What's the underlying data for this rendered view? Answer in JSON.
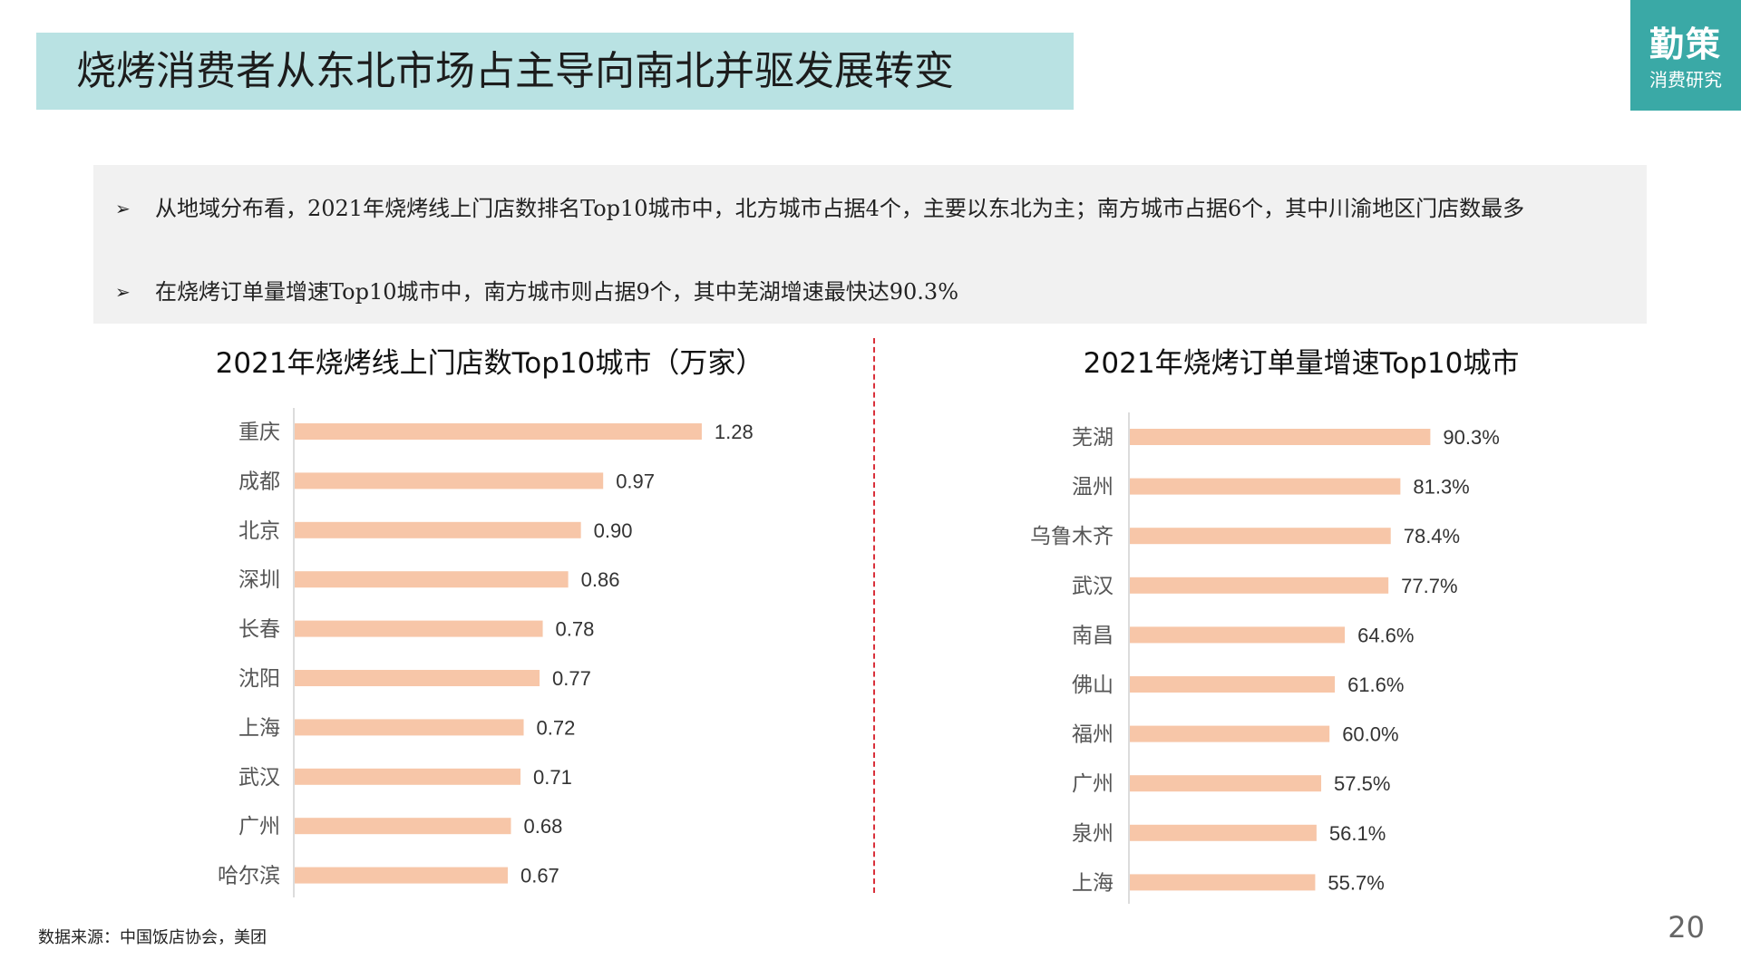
{
  "header": {
    "title": "烧烤消费者从东北市场占主导向南北并驱发展转变"
  },
  "brand": {
    "name": "勤策",
    "subtitle": "消费研究",
    "color": "#3aa9a6"
  },
  "summary": {
    "bullet_mark": "➢",
    "points": [
      "从地域分布看，2021年烧烤线上门店数排名Top10城市中，北方城市占据4个，主要以东北为主；南方城市占据6个，其中川渝地区门店数最多",
      "在烧烤订单量增速Top10城市中，南方城市则占据9个，其中芜湖增速最快达90.3%"
    ]
  },
  "chart_data": [
    {
      "type": "bar",
      "orientation": "horizontal",
      "title": "2021年烧烤线上门店数Top10城市（万家）",
      "categories": [
        "重庆",
        "成都",
        "北京",
        "深圳",
        "长春",
        "沈阳",
        "上海",
        "武汉",
        "广州",
        "哈尔滨"
      ],
      "values": [
        1.28,
        0.97,
        0.9,
        0.86,
        0.78,
        0.77,
        0.72,
        0.71,
        0.68,
        0.67
      ],
      "labels": [
        "1.28",
        "0.97",
        "0.90",
        "0.86",
        "0.78",
        "0.77",
        "0.72",
        "0.71",
        "0.68",
        "0.67"
      ],
      "xlim": [
        0,
        1.4
      ],
      "bar_color": "#f7c6a8",
      "grid": false
    },
    {
      "type": "bar",
      "orientation": "horizontal",
      "title": "2021年烧烤订单量增速Top10城市",
      "categories": [
        "芜湖",
        "温州",
        "乌鲁木齐",
        "武汉",
        "南昌",
        "佛山",
        "福州",
        "广州",
        "泉州",
        "上海"
      ],
      "values": [
        90.3,
        81.3,
        78.4,
        77.7,
        64.6,
        61.6,
        60.0,
        57.5,
        56.1,
        55.7
      ],
      "labels": [
        "90.3%",
        "81.3%",
        "78.4%",
        "77.7%",
        "64.6%",
        "61.6%",
        "60.0%",
        "57.5%",
        "56.1%",
        "55.7%"
      ],
      "xlim": [
        0,
        100
      ],
      "bar_color": "#f7c6a8",
      "grid": false
    }
  ],
  "footer": {
    "source": "数据来源：中国饭店协会，美团",
    "page_number": "20"
  }
}
